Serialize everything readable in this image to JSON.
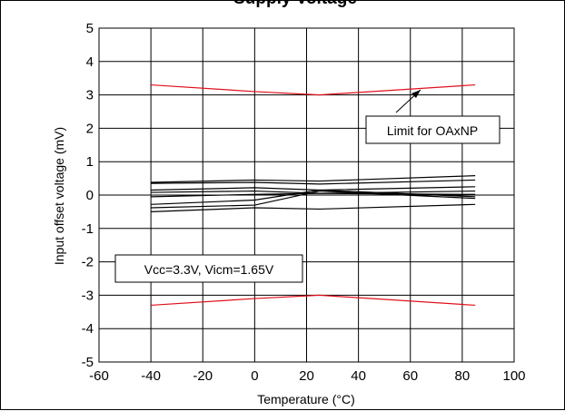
{
  "chart_data": {
    "type": "line",
    "title": "Supply Voltage",
    "xlabel": "Temperature (°C)",
    "ylabel": "Input offset voltage (mV)",
    "xlim": [
      -60,
      100
    ],
    "ylim": [
      -5,
      5
    ],
    "xticks": [
      -60,
      -40,
      -20,
      0,
      20,
      40,
      60,
      80,
      100
    ],
    "yticks": [
      -5,
      -4,
      -3,
      -2,
      -1,
      0,
      1,
      2,
      3,
      4,
      5
    ],
    "grid": true,
    "x": [
      -40,
      0,
      25,
      85
    ],
    "series": [
      {
        "values": [
          3.3,
          3.1,
          3.0,
          3.3
        ],
        "color": "#e0101a"
      },
      {
        "values": [
          -3.3,
          -3.1,
          -3.0,
          -3.3
        ],
        "color": "#e0101a"
      },
      {
        "values": [
          0.38,
          0.45,
          0.42,
          0.58
        ],
        "color": "#000000"
      },
      {
        "values": [
          0.35,
          0.38,
          0.33,
          0.45
        ],
        "color": "#000000"
      },
      {
        "values": [
          0.15,
          0.22,
          0.15,
          0.25
        ],
        "color": "#000000"
      },
      {
        "values": [
          0.08,
          0.12,
          0.05,
          0.12
        ],
        "color": "#000000"
      },
      {
        "values": [
          -0.05,
          0.02,
          0.05,
          0.02
        ],
        "color": "#000000"
      },
      {
        "values": [
          -0.28,
          -0.15,
          0.15,
          -0.05
        ],
        "color": "#000000"
      },
      {
        "values": [
          -0.38,
          -0.3,
          0.12,
          -0.1
        ],
        "color": "#000000"
      },
      {
        "values": [
          -0.5,
          -0.38,
          -0.42,
          -0.28
        ],
        "color": "#000000"
      }
    ],
    "annotations": [
      {
        "text": "Limit for OAxNP",
        "arrow_to": {
          "x": 55,
          "y": 3.2
        }
      },
      {
        "text": "Vcc=3.3V, Vicm=1.65V"
      }
    ]
  }
}
